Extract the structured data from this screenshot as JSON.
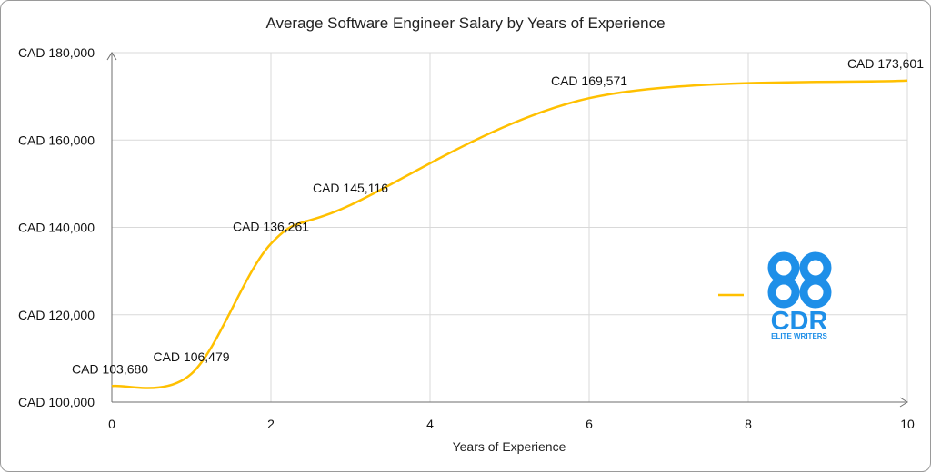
{
  "chart_data": {
    "type": "line",
    "title": "Average Software Engineer Salary by Years of Experience",
    "xlabel": "Years of Experience",
    "ylabel": "",
    "xlim": [
      0,
      10
    ],
    "ylim": [
      100000,
      180000
    ],
    "x_ticks": [
      0,
      2,
      4,
      6,
      8,
      10
    ],
    "y_ticks": [
      100000,
      120000,
      140000,
      160000,
      180000
    ],
    "y_tick_labels": [
      "CAD 100,000",
      "CAD 120,000",
      "CAD 140,000",
      "CAD 160,000",
      "CAD 180,000"
    ],
    "x_tick_labels": [
      "0",
      "2",
      "4",
      "6",
      "8",
      "10"
    ],
    "grid": "vertical and horizontal",
    "legend": "right",
    "series": [
      {
        "color": "#FFC000",
        "points": [
          {
            "x": 0,
            "y": 103680,
            "label": "CAD 103,680"
          },
          {
            "x": 1,
            "y": 106479,
            "label": "CAD 106,479"
          },
          {
            "x": 2,
            "y": 136261,
            "label": "CAD 136,261"
          },
          {
            "x": 3,
            "y": 145116,
            "label": "CAD 145,116"
          },
          {
            "x": 6,
            "y": 169571,
            "label": "CAD 169,571"
          },
          {
            "x": 10,
            "y": 173601,
            "label": "CAD 173,601"
          }
        ]
      }
    ]
  },
  "logo": {
    "brand": "CDR",
    "tagline": "ELITE WRITERS",
    "color": "#1E8FE8"
  }
}
